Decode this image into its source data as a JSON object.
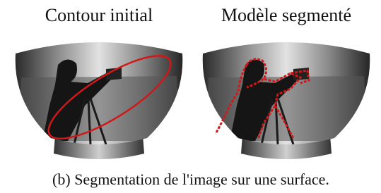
{
  "panels": [
    {
      "title": "Contour initial"
    },
    {
      "title": "Modèle segmenté"
    }
  ],
  "caption": "(b) Segmentation de l'image sur une surface."
}
